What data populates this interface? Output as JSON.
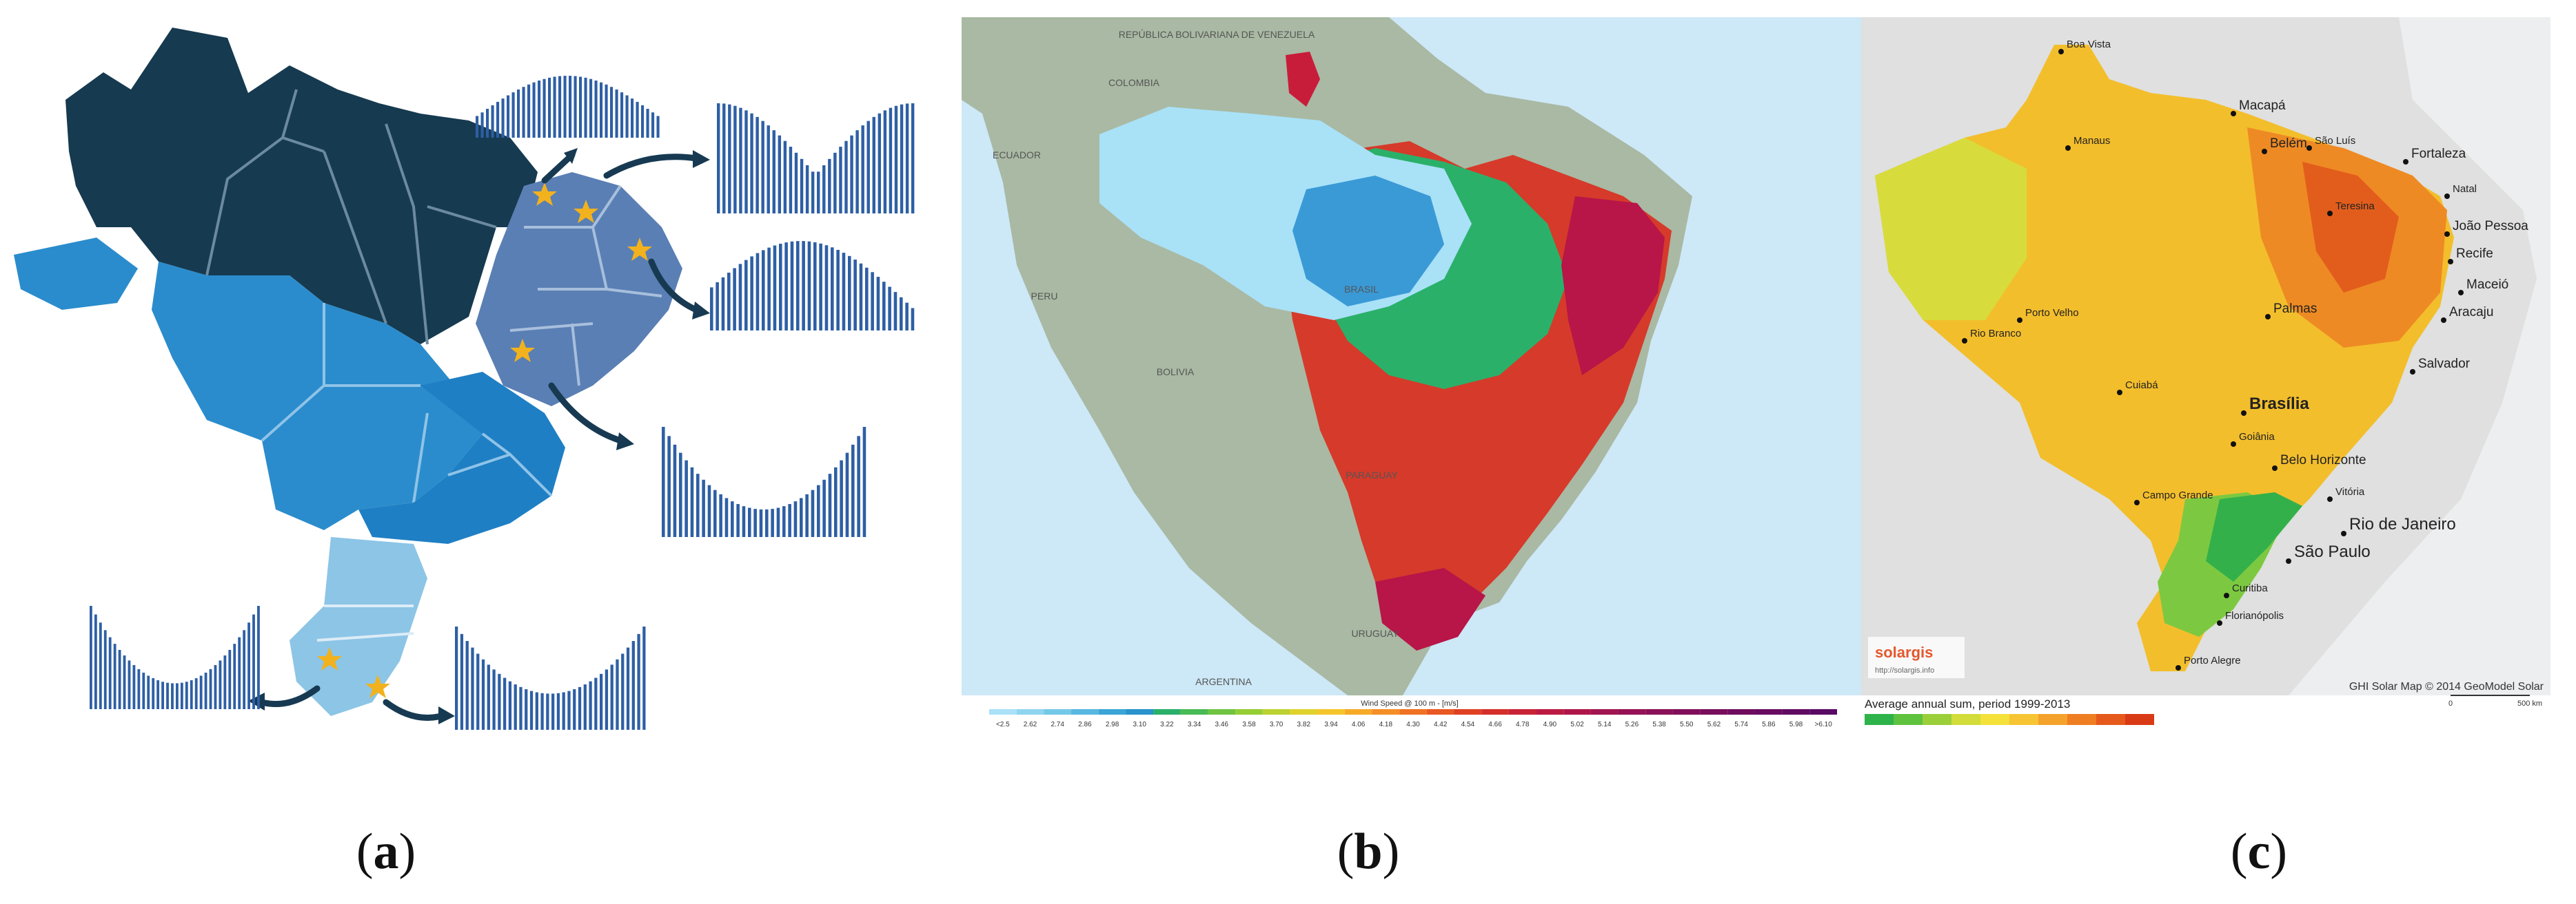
{
  "captions": {
    "a": "a",
    "b": "b",
    "c": "c"
  },
  "panel_b": {
    "countries": [
      "REPÚBLICA BOLIVARIANA DE VENEZUELA",
      "COLOMBIA",
      "ECUADOR",
      "PERU",
      "BOLIVIA",
      "PARAGUAY",
      "URUGUAY",
      "ARGENTINA",
      "BRASIL"
    ],
    "legend_title": "Wind Speed @ 100 m - [m/s]",
    "legend_values": [
      "<2.5",
      "2.62",
      "2.74",
      "2.86",
      "2.98",
      "3.10",
      "3.22",
      "3.34",
      "3.46",
      "3.58",
      "3.70",
      "3.82",
      "3.94",
      "4.06",
      "4.18",
      "4.30",
      "4.42",
      "4.54",
      "4.66",
      "4.78",
      "4.90",
      "5.02",
      "5.14",
      "5.26",
      "5.38",
      "5.50",
      "5.62",
      "5.74",
      "5.86",
      "5.98",
      ">6.10"
    ],
    "colors": {
      "ocean": "#cde8f7",
      "land": "#a9b9a3",
      "low": "#a9e1f7",
      "high": "#c01040"
    }
  },
  "panel_c": {
    "cities": [
      {
        "name": "Boa Vista"
      },
      {
        "name": "Macapá"
      },
      {
        "name": "Manaus"
      },
      {
        "name": "Belém"
      },
      {
        "name": "São Luís"
      },
      {
        "name": "Fortaleza"
      },
      {
        "name": "Natal"
      },
      {
        "name": "Teresina"
      },
      {
        "name": "João Pessoa"
      },
      {
        "name": "Recife"
      },
      {
        "name": "Porto Velho"
      },
      {
        "name": "Maceió"
      },
      {
        "name": "Rio Branco"
      },
      {
        "name": "Palmas"
      },
      {
        "name": "Aracaju"
      },
      {
        "name": "Salvador"
      },
      {
        "name": "Cuiabá"
      },
      {
        "name": "Brasília"
      },
      {
        "name": "Goiânia"
      },
      {
        "name": "Belo Horizonte"
      },
      {
        "name": "Vitória"
      },
      {
        "name": "Campo Grande"
      },
      {
        "name": "Rio de Janeiro"
      },
      {
        "name": "São Paulo"
      },
      {
        "name": "Curitiba"
      },
      {
        "name": "Florianópolis"
      },
      {
        "name": "Porto Alegre"
      }
    ],
    "logo": "solargis",
    "logo_url": "http://solargis.info",
    "copyright": "GHI Solar Map © 2014 GeoModel Solar",
    "legend_title": "Average annual sum, period 1999-2013",
    "scale_labels": [
      "0",
      "500 km"
    ],
    "legend_colors": [
      "#2eb34a",
      "#5fc23e",
      "#9bcf3a",
      "#d2dc3a",
      "#f4e13a",
      "#f7c534",
      "#f5a22c",
      "#ef7e23",
      "#e55a1c",
      "#d93a16"
    ]
  }
}
